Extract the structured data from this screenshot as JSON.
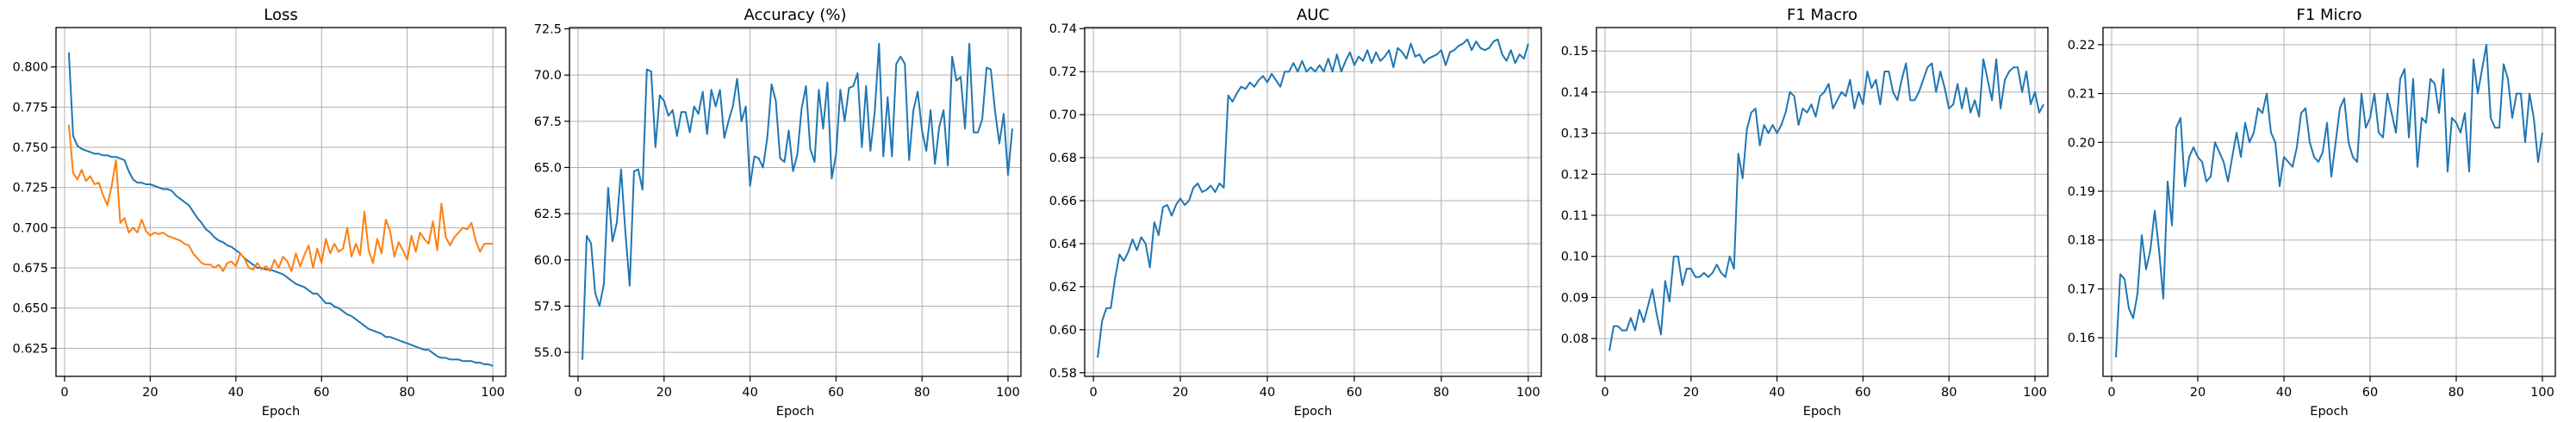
{
  "chart_data": [
    {
      "type": "line",
      "title": "Loss",
      "xlabel": "Epoch",
      "ylabel": "",
      "xlim": [
        -2,
        103
      ],
      "ylim": [
        0.6075,
        0.8245
      ],
      "xticks": [
        0,
        20,
        40,
        60,
        80,
        100
      ],
      "yticks": [
        0.625,
        0.65,
        0.675,
        0.7,
        0.725,
        0.75,
        0.775,
        0.8
      ],
      "ytick_labels": [
        "0.625",
        "0.650",
        "0.675",
        "0.700",
        "0.725",
        "0.750",
        "0.775",
        "0.800"
      ],
      "grid": true,
      "series": [
        {
          "color": "#1f77b4",
          "x_start": 1,
          "values": [
            0.809,
            0.757,
            0.751,
            0.749,
            0.748,
            0.747,
            0.746,
            0.746,
            0.745,
            0.745,
            0.744,
            0.744,
            0.743,
            0.742,
            0.735,
            0.73,
            0.728,
            0.728,
            0.727,
            0.727,
            0.726,
            0.725,
            0.724,
            0.724,
            0.723,
            0.72,
            0.718,
            0.716,
            0.714,
            0.71,
            0.706,
            0.703,
            0.699,
            0.697,
            0.694,
            0.692,
            0.691,
            0.689,
            0.688,
            0.686,
            0.684,
            0.681,
            0.679,
            0.677,
            0.675,
            0.675,
            0.674,
            0.674,
            0.673,
            0.672,
            0.671,
            0.669,
            0.667,
            0.665,
            0.664,
            0.663,
            0.661,
            0.659,
            0.659,
            0.656,
            0.653,
            0.653,
            0.651,
            0.65,
            0.648,
            0.646,
            0.645,
            0.643,
            0.641,
            0.639,
            0.637,
            0.636,
            0.635,
            0.634,
            0.632,
            0.632,
            0.631,
            0.63,
            0.629,
            0.628,
            0.627,
            0.626,
            0.625,
            0.624,
            0.624,
            0.622,
            0.62,
            0.619,
            0.619,
            0.618,
            0.618,
            0.618,
            0.617,
            0.617,
            0.617,
            0.616,
            0.616,
            0.615,
            0.615,
            0.614
          ]
        },
        {
          "color": "#ff7f0e",
          "x_start": 1,
          "values": [
            0.764,
            0.734,
            0.73,
            0.736,
            0.729,
            0.732,
            0.727,
            0.728,
            0.72,
            0.714,
            0.726,
            0.742,
            0.703,
            0.706,
            0.697,
            0.7,
            0.697,
            0.705,
            0.698,
            0.695,
            0.697,
            0.696,
            0.697,
            0.695,
            0.694,
            0.693,
            0.692,
            0.69,
            0.689,
            0.684,
            0.681,
            0.678,
            0.677,
            0.677,
            0.675,
            0.677,
            0.673,
            0.678,
            0.679,
            0.676,
            0.684,
            0.681,
            0.675,
            0.674,
            0.678,
            0.674,
            0.676,
            0.673,
            0.68,
            0.675,
            0.682,
            0.679,
            0.673,
            0.684,
            0.676,
            0.683,
            0.689,
            0.675,
            0.687,
            0.678,
            0.693,
            0.684,
            0.69,
            0.685,
            0.687,
            0.7,
            0.682,
            0.69,
            0.683,
            0.71,
            0.686,
            0.678,
            0.693,
            0.684,
            0.705,
            0.698,
            0.682,
            0.691,
            0.686,
            0.68,
            0.695,
            0.685,
            0.697,
            0.693,
            0.69,
            0.704,
            0.686,
            0.715,
            0.694,
            0.689,
            0.694,
            0.697,
            0.7,
            0.699,
            0.703,
            0.692,
            0.685,
            0.69,
            0.69,
            0.69
          ]
        }
      ]
    },
    {
      "type": "line",
      "title": "Accuracy (%)",
      "xlabel": "Epoch",
      "ylabel": "",
      "xlim": [
        -2,
        103
      ],
      "ylim": [
        53.7,
        72.57
      ],
      "xticks": [
        0,
        20,
        40,
        60,
        80,
        100
      ],
      "yticks": [
        55.0,
        57.5,
        60.0,
        62.5,
        65.0,
        67.5,
        70.0,
        72.5
      ],
      "ytick_labels": [
        "55.0",
        "57.5",
        "60.0",
        "62.5",
        "65.0",
        "67.5",
        "70.0",
        "72.5"
      ],
      "grid": true,
      "series": [
        {
          "color": "#1f77b4",
          "x_start": 1,
          "values": [
            54.6,
            61.3,
            60.9,
            58.2,
            57.5,
            58.7,
            63.9,
            61.0,
            62.0,
            64.9,
            61.5,
            58.6,
            64.8,
            64.9,
            63.8,
            70.3,
            70.2,
            66.1,
            68.9,
            68.6,
            67.8,
            68.1,
            66.7,
            68.0,
            68.0,
            66.9,
            68.3,
            67.9,
            69.1,
            66.8,
            69.2,
            68.3,
            69.2,
            66.6,
            67.5,
            68.3,
            69.8,
            67.5,
            68.3,
            64.0,
            65.6,
            65.5,
            65.0,
            66.6,
            69.5,
            68.6,
            65.5,
            65.3,
            67.0,
            64.8,
            65.7,
            68.2,
            69.4,
            66.0,
            65.3,
            69.2,
            67.1,
            69.6,
            64.4,
            65.7,
            69.2,
            67.5,
            69.3,
            69.4,
            70.1,
            66.1,
            69.4,
            65.9,
            68.0,
            71.7,
            65.6,
            68.8,
            65.6,
            70.6,
            71.0,
            70.6,
            65.4,
            68.1,
            69.1,
            67.0,
            65.9,
            68.1,
            65.2,
            67.2,
            68.1,
            65.1,
            71.0,
            69.7,
            69.9,
            67.1,
            71.7,
            66.9,
            66.9,
            67.6,
            70.4,
            70.3,
            68.0,
            66.3,
            67.9,
            64.6,
            67.1
          ]
        }
      ]
    },
    {
      "type": "line",
      "title": "AUC",
      "xlabel": "Epoch",
      "ylabel": "",
      "xlim": [
        -2,
        103
      ],
      "ylim": [
        0.5783,
        0.7405
      ],
      "xticks": [
        0,
        20,
        40,
        60,
        80,
        100
      ],
      "yticks": [
        0.58,
        0.6,
        0.62,
        0.64,
        0.66,
        0.68,
        0.7,
        0.72,
        0.74
      ],
      "ytick_labels": [
        "0.58",
        "0.60",
        "0.62",
        "0.64",
        "0.66",
        "0.68",
        "0.70",
        "0.72",
        "0.74"
      ],
      "grid": true,
      "series": [
        {
          "color": "#1f77b4",
          "x_start": 1,
          "values": [
            0.587,
            0.604,
            0.61,
            0.61,
            0.624,
            0.635,
            0.632,
            0.636,
            0.642,
            0.637,
            0.643,
            0.64,
            0.629,
            0.65,
            0.644,
            0.657,
            0.658,
            0.653,
            0.658,
            0.661,
            0.658,
            0.66,
            0.666,
            0.668,
            0.664,
            0.665,
            0.667,
            0.664,
            0.668,
            0.666,
            0.709,
            0.706,
            0.71,
            0.713,
            0.712,
            0.715,
            0.713,
            0.716,
            0.718,
            0.715,
            0.719,
            0.716,
            0.713,
            0.72,
            0.72,
            0.724,
            0.72,
            0.725,
            0.72,
            0.722,
            0.72,
            0.723,
            0.72,
            0.726,
            0.72,
            0.728,
            0.72,
            0.725,
            0.729,
            0.723,
            0.727,
            0.725,
            0.73,
            0.724,
            0.729,
            0.725,
            0.727,
            0.73,
            0.722,
            0.731,
            0.729,
            0.726,
            0.733,
            0.727,
            0.728,
            0.724,
            0.726,
            0.727,
            0.728,
            0.73,
            0.723,
            0.729,
            0.73,
            0.732,
            0.733,
            0.735,
            0.73,
            0.734,
            0.731,
            0.73,
            0.731,
            0.734,
            0.735,
            0.728,
            0.725,
            0.73,
            0.724,
            0.728,
            0.726,
            0.733
          ]
        }
      ]
    },
    {
      "type": "line",
      "title": "F1 Macro",
      "xlabel": "Epoch",
      "ylabel": "",
      "xlim": [
        -2,
        103
      ],
      "ylim": [
        0.0708,
        0.1557
      ],
      "xticks": [
        0,
        20,
        40,
        60,
        80,
        100
      ],
      "yticks": [
        0.08,
        0.09,
        0.1,
        0.11,
        0.12,
        0.13,
        0.14,
        0.15
      ],
      "ytick_labels": [
        "0.08",
        "0.09",
        "0.10",
        "0.11",
        "0.12",
        "0.13",
        "0.14",
        "0.15"
      ],
      "grid": true,
      "series": [
        {
          "color": "#1f77b4",
          "x_start": 1,
          "values": [
            0.077,
            0.083,
            0.083,
            0.082,
            0.082,
            0.085,
            0.082,
            0.087,
            0.084,
            0.088,
            0.092,
            0.086,
            0.081,
            0.094,
            0.089,
            0.1,
            0.1,
            0.093,
            0.097,
            0.097,
            0.095,
            0.095,
            0.096,
            0.095,
            0.096,
            0.098,
            0.096,
            0.095,
            0.1,
            0.097,
            0.125,
            0.119,
            0.131,
            0.135,
            0.136,
            0.127,
            0.132,
            0.13,
            0.132,
            0.13,
            0.132,
            0.135,
            0.14,
            0.139,
            0.132,
            0.136,
            0.135,
            0.137,
            0.134,
            0.139,
            0.14,
            0.142,
            0.136,
            0.138,
            0.14,
            0.139,
            0.143,
            0.136,
            0.14,
            0.137,
            0.145,
            0.141,
            0.143,
            0.137,
            0.145,
            0.145,
            0.14,
            0.138,
            0.143,
            0.147,
            0.138,
            0.138,
            0.14,
            0.143,
            0.146,
            0.147,
            0.14,
            0.145,
            0.141,
            0.136,
            0.137,
            0.142,
            0.136,
            0.141,
            0.135,
            0.138,
            0.134,
            0.148,
            0.143,
            0.138,
            0.148,
            0.136,
            0.143,
            0.145,
            0.146,
            0.146,
            0.14,
            0.145,
            0.137,
            0.14,
            0.135,
            0.137
          ]
        }
      ]
    },
    {
      "type": "line",
      "title": "F1 Micro",
      "xlabel": "Epoch",
      "ylabel": "",
      "xlim": [
        -2,
        103
      ],
      "ylim": [
        0.1521,
        0.2235
      ],
      "xticks": [
        0,
        20,
        40,
        60,
        80,
        100
      ],
      "yticks": [
        0.16,
        0.17,
        0.18,
        0.19,
        0.2,
        0.21,
        0.22
      ],
      "ytick_labels": [
        "0.16",
        "0.17",
        "0.18",
        "0.19",
        "0.20",
        "0.21",
        "0.22"
      ],
      "grid": true,
      "series": [
        {
          "color": "#1f77b4",
          "x_start": 1,
          "values": [
            0.156,
            0.173,
            0.172,
            0.166,
            0.164,
            0.169,
            0.181,
            0.174,
            0.178,
            0.186,
            0.178,
            0.168,
            0.192,
            0.183,
            0.203,
            0.205,
            0.191,
            0.197,
            0.199,
            0.197,
            0.196,
            0.192,
            0.193,
            0.2,
            0.198,
            0.196,
            0.192,
            0.197,
            0.202,
            0.197,
            0.204,
            0.2,
            0.202,
            0.207,
            0.206,
            0.21,
            0.202,
            0.2,
            0.191,
            0.197,
            0.196,
            0.195,
            0.199,
            0.206,
            0.207,
            0.2,
            0.197,
            0.196,
            0.198,
            0.204,
            0.193,
            0.2,
            0.207,
            0.209,
            0.2,
            0.197,
            0.196,
            0.21,
            0.203,
            0.205,
            0.21,
            0.202,
            0.201,
            0.21,
            0.206,
            0.202,
            0.213,
            0.215,
            0.201,
            0.213,
            0.195,
            0.205,
            0.204,
            0.213,
            0.212,
            0.206,
            0.215,
            0.194,
            0.205,
            0.204,
            0.202,
            0.206,
            0.194,
            0.217,
            0.21,
            0.215,
            0.22,
            0.205,
            0.203,
            0.203,
            0.216,
            0.213,
            0.205,
            0.21,
            0.21,
            0.2,
            0.21,
            0.205,
            0.196,
            0.202
          ]
        }
      ]
    }
  ]
}
